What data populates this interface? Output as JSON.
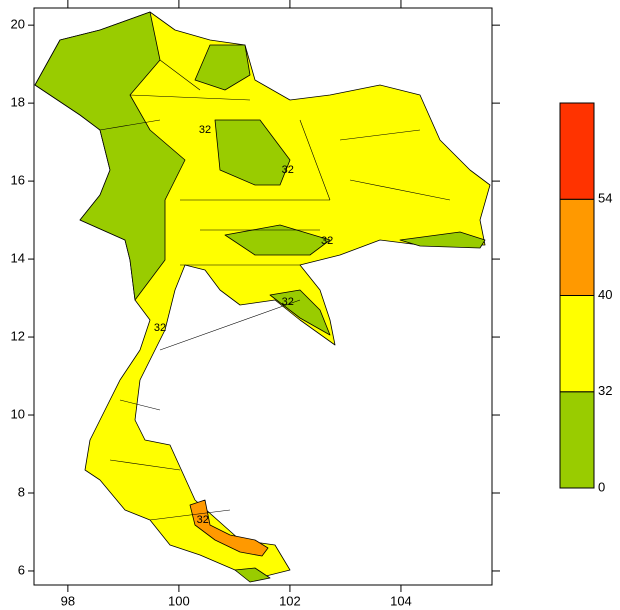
{
  "chart_data": {
    "type": "map",
    "xlim": [
      97.39,
      105.64
    ],
    "ylim": [
      5.64,
      20.44
    ],
    "xticks": [
      98,
      100,
      102,
      104
    ],
    "yticks": [
      6,
      8,
      10,
      12,
      14,
      16,
      18,
      20
    ],
    "colorbar": {
      "levels": [
        0,
        32,
        40,
        54
      ],
      "colors": [
        "#99cc00",
        "#ffff00",
        "#ff9900",
        "#ff3300"
      ]
    },
    "contour_labels": [
      {
        "text": "32",
        "lon": 100.47,
        "lat": 17.31
      },
      {
        "text": "32",
        "lon": 101.96,
        "lat": 16.28
      },
      {
        "text": "32",
        "lon": 102.67,
        "lat": 14.46
      },
      {
        "text": "32",
        "lon": 101.96,
        "lat": 12.9
      },
      {
        "text": "32",
        "lon": 99.66,
        "lat": 12.23
      },
      {
        "text": "32",
        "lon": 100.43,
        "lat": 7.31
      }
    ]
  }
}
